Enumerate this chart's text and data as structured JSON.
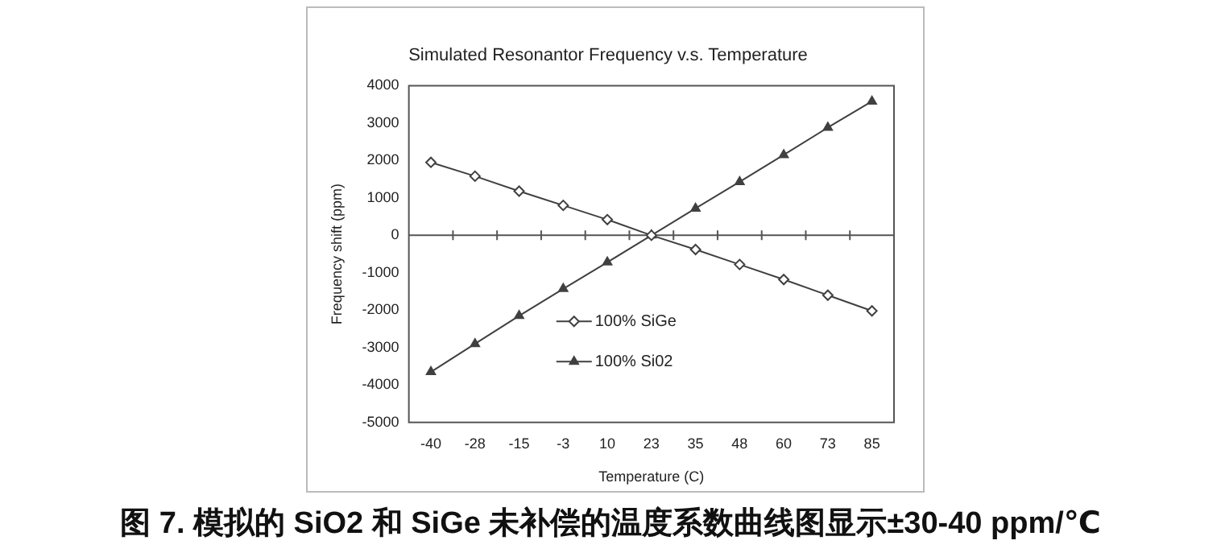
{
  "chart_data": {
    "type": "line",
    "title": "Simulated Resonantor Frequency v.s. Temperature",
    "xlabel": "Temperature (C)",
    "ylabel": "Frequency shift (ppm)",
    "categories": [
      "-40",
      "-28",
      "-15",
      "-3",
      "10",
      "23",
      "35",
      "48",
      "60",
      "73",
      "85"
    ],
    "series": [
      {
        "name": "100% SiGe",
        "color": "#404040",
        "marker": "diamond",
        "values": [
          1950,
          1580,
          1180,
          800,
          420,
          0,
          -380,
          -780,
          -1180,
          -1600,
          -2020
        ]
      },
      {
        "name": "100% Si02",
        "color": "#404040",
        "marker": "triangle",
        "values": [
          -3650,
          -2900,
          -2150,
          -1430,
          -720,
          0,
          720,
          1430,
          2150,
          2880,
          3580
        ]
      }
    ],
    "ylim": [
      -5000,
      4000
    ],
    "yticks": [
      -5000,
      -4000,
      -3000,
      -2000,
      -1000,
      0,
      1000,
      2000,
      3000,
      4000
    ],
    "grid": false,
    "ref_lines": [
      {
        "axis": "y",
        "value": 0
      }
    ],
    "legend": "center",
    "line_style": "solid",
    "annotations": [
      "图 7. 模拟的 SiO2 和 SiGe 未补偿的温度系数曲线图显示±30-40 ppm/℃"
    ]
  }
}
